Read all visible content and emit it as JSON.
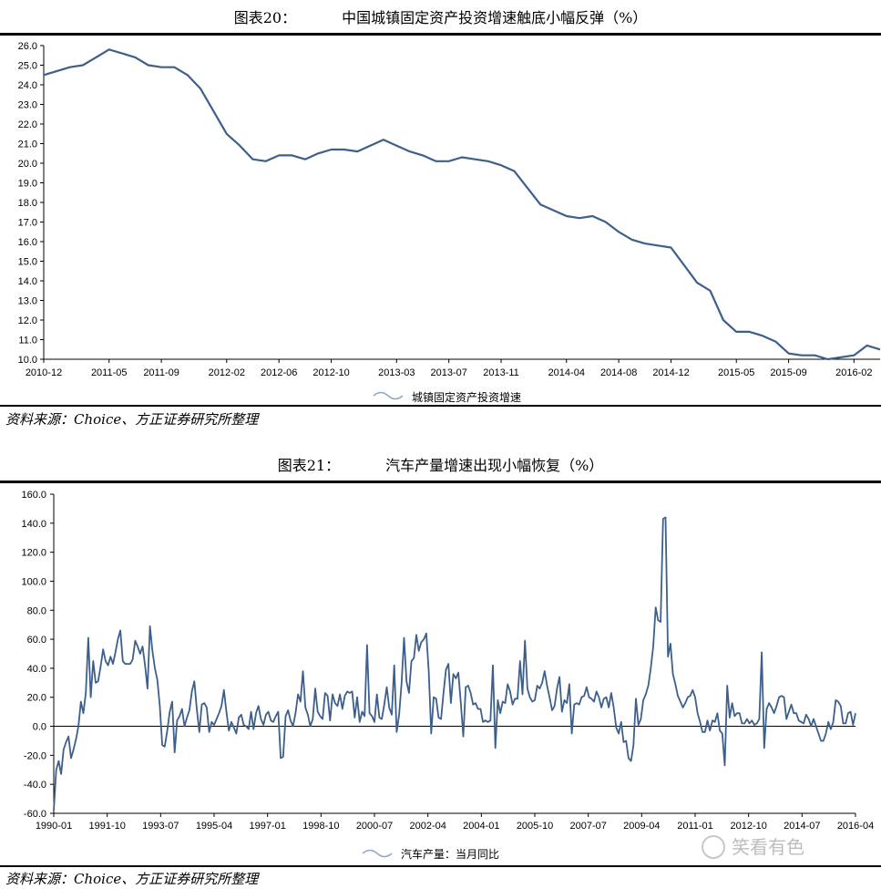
{
  "chart_data": [
    {
      "type": "line",
      "figure_label": "图表20：",
      "title": "中国城镇固定资产投资增速触底小幅反弹（%）",
      "xlabel": "",
      "ylabel": "",
      "ylim": [
        10.0,
        26.0
      ],
      "yticks": [
        "10.0",
        "11.0",
        "12.0",
        "13.0",
        "14.0",
        "15.0",
        "16.0",
        "17.0",
        "18.0",
        "19.0",
        "20.0",
        "21.0",
        "22.0",
        "23.0",
        "24.0",
        "25.0",
        "26.0"
      ],
      "xticks": [
        "2010-12",
        "2011-05",
        "2011-09",
        "2012-02",
        "2012-06",
        "2012-10",
        "2013-03",
        "2013-07",
        "2013-11",
        "2014-04",
        "2014-08",
        "2014-12",
        "2015-05",
        "2015-09",
        "2016-02"
      ],
      "grid": false,
      "legend": "bottom",
      "series": [
        {
          "name": "城镇固定资产投资增速",
          "x": [
            "2010-12",
            "2011-02",
            "2011-03",
            "2011-04",
            "2011-05",
            "2011-06",
            "2011-07",
            "2011-08",
            "2011-09",
            "2011-10",
            "2011-11",
            "2011-12",
            "2012-02",
            "2012-03",
            "2012-04",
            "2012-05",
            "2012-06",
            "2012-07",
            "2012-08",
            "2012-09",
            "2012-10",
            "2012-11",
            "2012-12",
            "2013-02",
            "2013-03",
            "2013-04",
            "2013-05",
            "2013-06",
            "2013-07",
            "2013-08",
            "2013-09",
            "2013-10",
            "2013-11",
            "2013-12",
            "2014-02",
            "2014-03",
            "2014-04",
            "2014-05",
            "2014-06",
            "2014-07",
            "2014-08",
            "2014-09",
            "2014-10",
            "2014-11",
            "2014-12",
            "2015-02",
            "2015-03",
            "2015-04",
            "2015-05",
            "2015-06",
            "2015-07",
            "2015-08",
            "2015-09",
            "2015-10",
            "2015-11",
            "2015-12",
            "2016-02",
            "2016-03",
            "2016-04"
          ],
          "values": [
            24.5,
            24.9,
            25.0,
            25.4,
            25.8,
            25.6,
            25.4,
            25.0,
            24.9,
            24.9,
            24.5,
            23.8,
            21.5,
            20.9,
            20.2,
            20.1,
            20.4,
            20.4,
            20.2,
            20.5,
            20.7,
            20.7,
            20.6,
            21.2,
            20.9,
            20.6,
            20.4,
            20.1,
            20.1,
            20.3,
            20.2,
            20.1,
            19.9,
            19.6,
            17.9,
            17.6,
            17.3,
            17.2,
            17.3,
            17.0,
            16.5,
            16.1,
            15.9,
            15.8,
            15.7,
            13.9,
            13.5,
            12.0,
            11.4,
            11.4,
            11.2,
            10.9,
            10.3,
            10.2,
            10.2,
            10.0,
            10.2,
            10.7,
            10.5
          ]
        }
      ],
      "source": "资料来源：Choice、方正证券研究所整理"
    },
    {
      "type": "line",
      "figure_label": "图表21：",
      "title": "汽车产量增速出现小幅恢复（%）",
      "xlabel": "",
      "ylabel": "",
      "ylim": [
        -60.0,
        160.0
      ],
      "yticks": [
        "-60.0",
        "-40.0",
        "-20.0",
        "0.0",
        "20.0",
        "40.0",
        "60.0",
        "80.0",
        "100.0",
        "120.0",
        "140.0",
        "160.0"
      ],
      "xticks": [
        "1990-01",
        "1991-10",
        "1993-07",
        "1995-04",
        "1997-01",
        "1998-10",
        "2000-07",
        "2002-04",
        "2004-01",
        "2005-10",
        "2007-07",
        "2009-04",
        "2011-01",
        "2012-10",
        "2014-07",
        "2016-04"
      ],
      "grid": false,
      "legend": "bottom",
      "series": [
        {
          "name": "汽车产量：当月同比",
          "x_start": "1990-01",
          "x_end": "2016-04",
          "values": [
            -58,
            -30,
            -24,
            -33,
            -16,
            -11,
            -7,
            -22,
            -16,
            -9,
            0,
            17,
            9,
            23,
            61,
            20,
            45,
            30,
            31,
            41,
            53,
            45,
            42,
            48,
            43,
            51,
            60,
            66,
            45,
            43,
            43,
            43,
            46,
            59,
            55,
            50,
            55,
            42,
            26,
            69,
            52,
            40,
            32,
            14,
            -13,
            -14,
            -3,
            10,
            17,
            -18,
            4,
            7,
            12,
            0,
            6,
            11,
            24,
            31,
            12,
            -4,
            15,
            16,
            13,
            -4,
            3,
            1,
            5,
            9,
            14,
            25,
            10,
            -3,
            3,
            -1,
            -5,
            6,
            8,
            1,
            0,
            -2,
            10,
            -2,
            9,
            14,
            5,
            1,
            8,
            10,
            4,
            3,
            7,
            10,
            -22,
            -21,
            7,
            11,
            4,
            0,
            9,
            22,
            17,
            38,
            13,
            8,
            0,
            5,
            26,
            10,
            7,
            5,
            23,
            21,
            4,
            22,
            16,
            14,
            22,
            12,
            21,
            24,
            23,
            24,
            6,
            20,
            3,
            10,
            7,
            56,
            9,
            7,
            3,
            22,
            6,
            5,
            15,
            27,
            13,
            8,
            42,
            -4,
            8,
            30,
            61,
            31,
            23,
            45,
            47,
            63,
            52,
            58,
            60,
            64,
            38,
            -5,
            20,
            19,
            6,
            5,
            23,
            39,
            43,
            16,
            36,
            33,
            37,
            16,
            -7,
            27,
            28,
            23,
            15,
            16,
            12,
            12,
            3,
            4,
            3,
            4,
            42,
            -15,
            18,
            9,
            17,
            16,
            29,
            24,
            15,
            19,
            19,
            45,
            22,
            59,
            26,
            20,
            17,
            18,
            28,
            26,
            30,
            38,
            28,
            20,
            11,
            14,
            26,
            34,
            10,
            18,
            16,
            29,
            -5,
            15,
            16,
            15,
            20,
            21,
            27,
            20,
            19,
            17,
            24,
            20,
            13,
            19,
            20,
            13,
            23,
            13,
            -1,
            -5,
            3,
            -11,
            -10,
            -22,
            -24,
            -13,
            19,
            1,
            5,
            18,
            22,
            28,
            40,
            55,
            82,
            73,
            72,
            143,
            144,
            48,
            57,
            36,
            29,
            21,
            17,
            13,
            16,
            20,
            21,
            25,
            20,
            9,
            3,
            -4,
            -4,
            4,
            -3,
            4,
            3,
            9,
            -3,
            -5,
            -27,
            28,
            6,
            16,
            7,
            9,
            9,
            2,
            2,
            5,
            2,
            4,
            1,
            2,
            5,
            51,
            -15,
            12,
            16,
            13,
            9,
            14,
            20,
            21,
            20,
            5,
            10,
            15,
            9,
            9,
            4,
            3,
            2,
            8,
            5,
            0,
            5,
            0,
            -5,
            -10,
            -10,
            -5,
            3,
            -2,
            3,
            18,
            17,
            14,
            2,
            2,
            9,
            10,
            1,
            9
          ]
        }
      ],
      "source": "资料来源：Choice、方正证券研究所整理",
      "watermark": "笑看有色"
    }
  ]
}
